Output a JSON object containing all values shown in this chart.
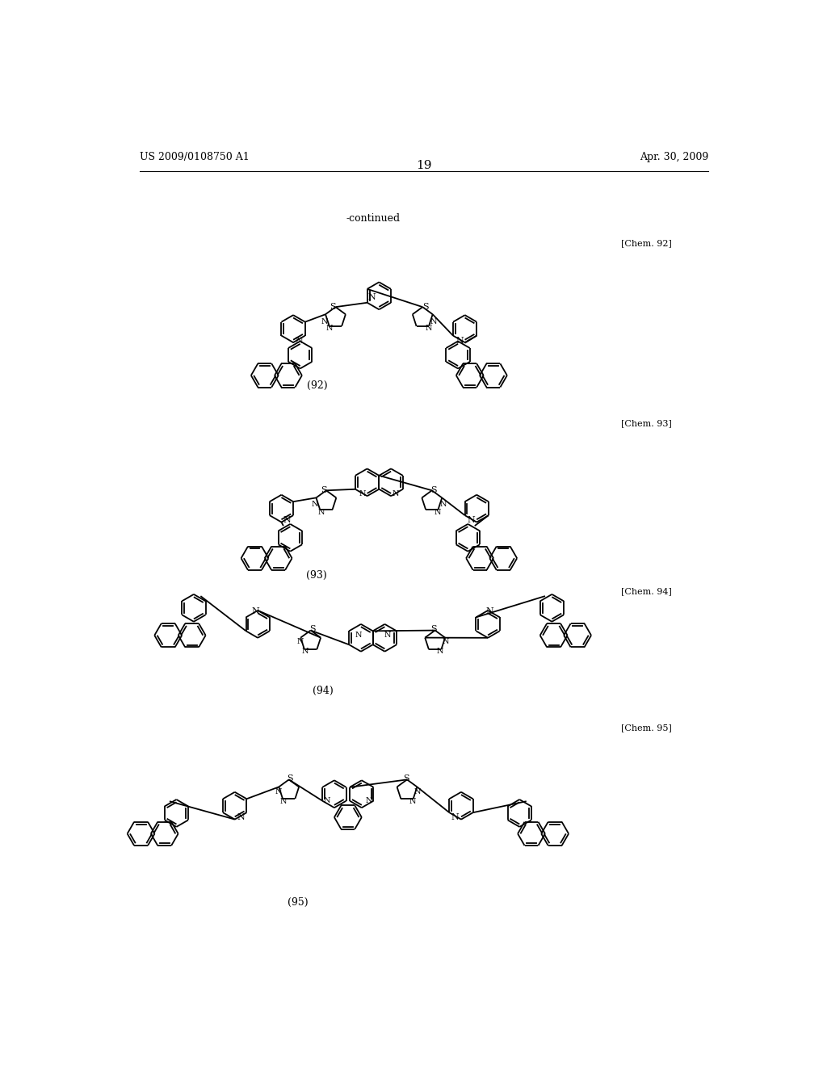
{
  "page_number": "19",
  "patent_number": "US 2009/0108750 A1",
  "patent_date": "Apr. 30, 2009",
  "continued_label": "-continued",
  "background_color": "#ffffff",
  "text_color": "#000000",
  "chem_labels": [
    "[Chem. 92]",
    "[Chem. 93]",
    "[Chem. 94]",
    "[Chem. 95]"
  ],
  "compound_numbers": [
    "(92)",
    "(93)",
    "(94)",
    "(95)"
  ]
}
